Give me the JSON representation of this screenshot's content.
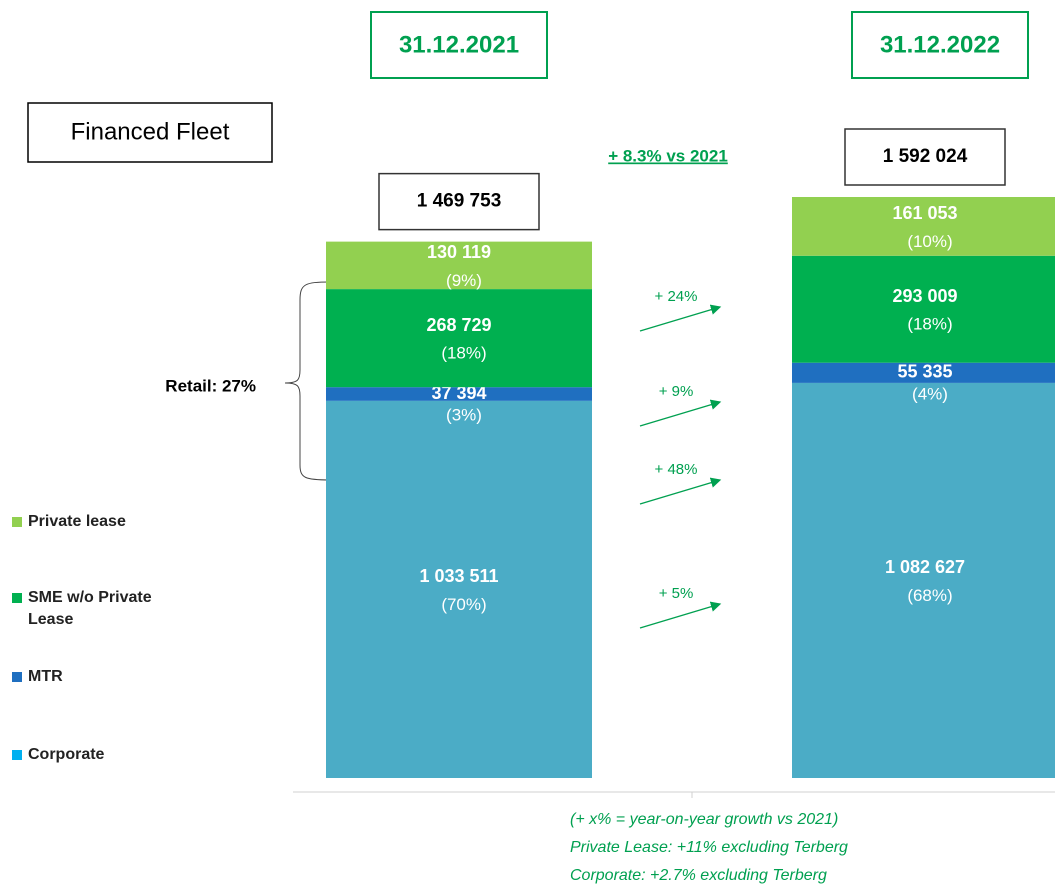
{
  "chart_data": {
    "type": "bar",
    "stacked": true,
    "title": "Financed Fleet",
    "categories": [
      "31.12.2021",
      "31.12.2022"
    ],
    "totals": [
      1469753,
      1592024
    ],
    "total_labels": [
      "1 469 753",
      "1 592 024"
    ],
    "total_growth": "+ 8.3% vs 2021",
    "bracket_label": "Retail: 27%",
    "series": [
      {
        "name": "Private lease",
        "color": "#92d050",
        "legend_color": "#92d050",
        "values": [
          130119,
          161053
        ],
        "value_labels": [
          "130 119",
          "161 053"
        ],
        "percent_labels": [
          "(9%)",
          "(10%)"
        ],
        "growth": "+ 24%"
      },
      {
        "name": "SME w/o Private Lease",
        "color": "#00b050",
        "legend_color": "#00b050",
        "values": [
          268729,
          293009
        ],
        "value_labels": [
          "268 729",
          "293 009"
        ],
        "percent_labels": [
          "(18%)",
          "(18%)"
        ],
        "growth": "+ 9%"
      },
      {
        "name": "MTR",
        "color": "#1f6fc0",
        "legend_color": "#1f6fc0",
        "values": [
          37394,
          55335
        ],
        "value_labels": [
          "37 394",
          "55 335"
        ],
        "percent_labels": [
          "(3%)",
          "(4%)"
        ],
        "growth": "+ 48%"
      },
      {
        "name": "Corporate",
        "color": "#4bacc6",
        "legend_color": "#00b0f0",
        "values": [
          1033511,
          1082627
        ],
        "value_labels": [
          "1 033 511",
          "1 082 627"
        ],
        "percent_labels": [
          "(70%)",
          "(68%)"
        ],
        "growth": "+ 5%"
      }
    ],
    "footnotes": [
      "(+ x% = year-on-year growth vs 2021)",
      "Private Lease: +11% excluding Terberg",
      "Corporate: +2.7% excluding Terberg"
    ]
  }
}
